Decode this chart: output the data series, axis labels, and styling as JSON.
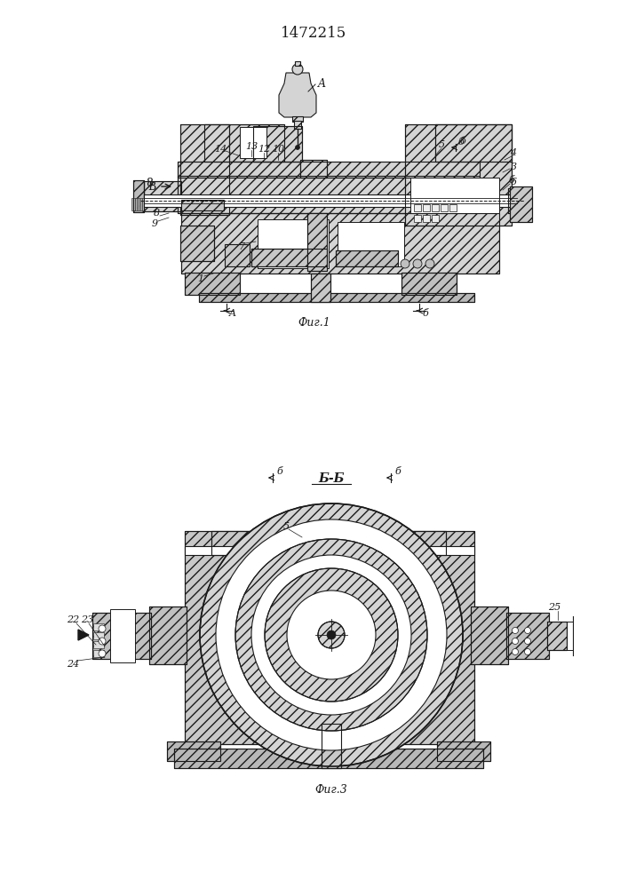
{
  "title": "1472215",
  "fig1_label": "Фиг.1",
  "fig3_label": "Фиг.3",
  "section_label": "Б-Б",
  "bg_color": "#ffffff",
  "lc": "#1a1a1a",
  "hatch_fc": "#d4d4d4",
  "white": "#ffffff"
}
